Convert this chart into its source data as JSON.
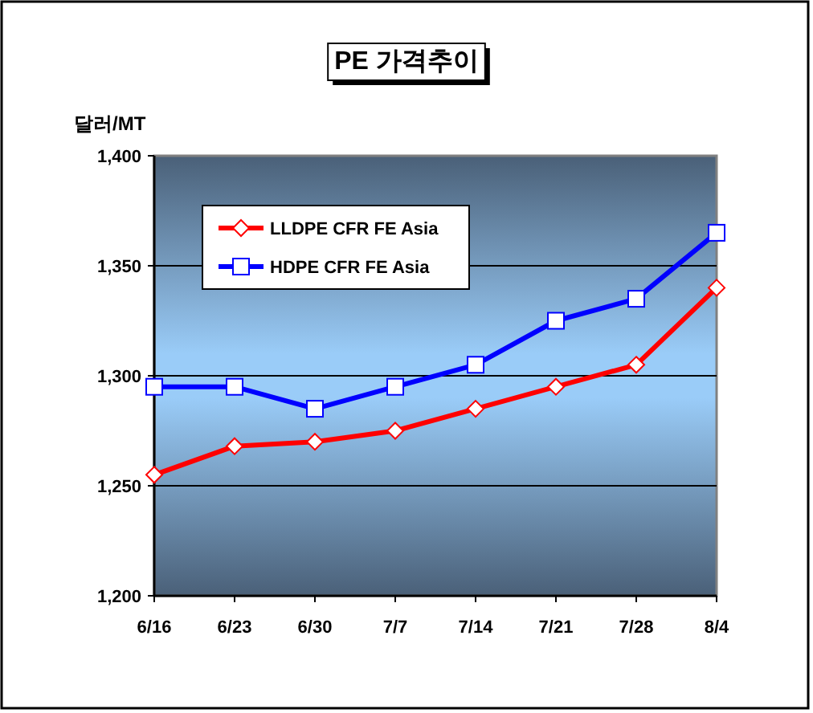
{
  "chart_data": {
    "type": "line",
    "title": "PE 가격추이",
    "ylabel": "달러/MT",
    "categories": [
      "6/16",
      "6/23",
      "6/30",
      "7/7",
      "7/14",
      "7/21",
      "7/28",
      "8/4"
    ],
    "series": [
      {
        "name": "LLDPE CFR FE Asia",
        "color": "#ff0000",
        "marker": "diamond",
        "values": [
          1255,
          1268,
          1270,
          1275,
          1285,
          1295,
          1305,
          1340
        ]
      },
      {
        "name": "HDPE CFR FE Asia",
        "color": "#0000ff",
        "marker": "square",
        "values": [
          1295,
          1295,
          1285,
          1295,
          1305,
          1325,
          1335,
          1365
        ]
      }
    ],
    "ylim": [
      1200,
      1400
    ],
    "yticks": [
      {
        "value": 1200,
        "label": "1,200"
      },
      {
        "value": 1250,
        "label": "1,250"
      },
      {
        "value": 1300,
        "label": "1,300"
      },
      {
        "value": 1350,
        "label": "1,350"
      },
      {
        "value": 1400,
        "label": "1,400"
      }
    ],
    "grid": "y",
    "legend": "top left",
    "line_style": "solid"
  }
}
